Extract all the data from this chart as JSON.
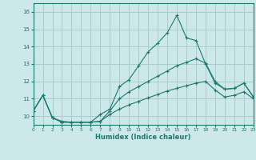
{
  "background_color": "#cce8e8",
  "grid_color": "#aacccc",
  "line_color": "#1a7a6e",
  "xlabel": "Humidex (Indice chaleur)",
  "xmin": 0,
  "xmax": 23,
  "ymin": 9.5,
  "ymax": 16.5,
  "yticks": [
    10,
    11,
    12,
    13,
    14,
    15,
    16
  ],
  "xticks": [
    0,
    1,
    2,
    3,
    4,
    5,
    6,
    7,
    8,
    9,
    10,
    11,
    12,
    13,
    14,
    15,
    16,
    17,
    18,
    19,
    20,
    21,
    22,
    23
  ],
  "line1_x": [
    0,
    1,
    2,
    3,
    4,
    5,
    6,
    7,
    8,
    9,
    10,
    11,
    12,
    13,
    14,
    15,
    16,
    17,
    18,
    19,
    20,
    21,
    22,
    23
  ],
  "line1_y": [
    10.3,
    11.2,
    9.9,
    9.7,
    9.65,
    9.65,
    9.65,
    10.1,
    10.4,
    11.7,
    12.1,
    12.9,
    13.7,
    14.2,
    14.8,
    15.8,
    14.5,
    14.35,
    13.0,
    11.9,
    11.55,
    11.6,
    11.9,
    11.1
  ],
  "line2_x": [
    0,
    1,
    2,
    3,
    4,
    5,
    6,
    7,
    8,
    9,
    10,
    11,
    12,
    13,
    14,
    15,
    16,
    17,
    18,
    19,
    20,
    21,
    22,
    23
  ],
  "line2_y": [
    10.3,
    11.2,
    9.9,
    9.65,
    9.65,
    9.65,
    9.65,
    9.7,
    10.3,
    11.0,
    11.4,
    11.7,
    12.0,
    12.3,
    12.6,
    12.9,
    13.1,
    13.3,
    13.05,
    12.0,
    11.55,
    11.6,
    11.9,
    11.1
  ],
  "line3_x": [
    0,
    1,
    2,
    3,
    4,
    5,
    6,
    7,
    8,
    9,
    10,
    11,
    12,
    13,
    14,
    15,
    16,
    17,
    18,
    19,
    20,
    21,
    22,
    23
  ],
  "line3_y": [
    10.3,
    11.2,
    9.9,
    9.65,
    9.65,
    9.65,
    9.65,
    9.7,
    10.1,
    10.4,
    10.65,
    10.85,
    11.05,
    11.25,
    11.45,
    11.6,
    11.75,
    11.9,
    12.0,
    11.5,
    11.1,
    11.2,
    11.4,
    11.0
  ]
}
